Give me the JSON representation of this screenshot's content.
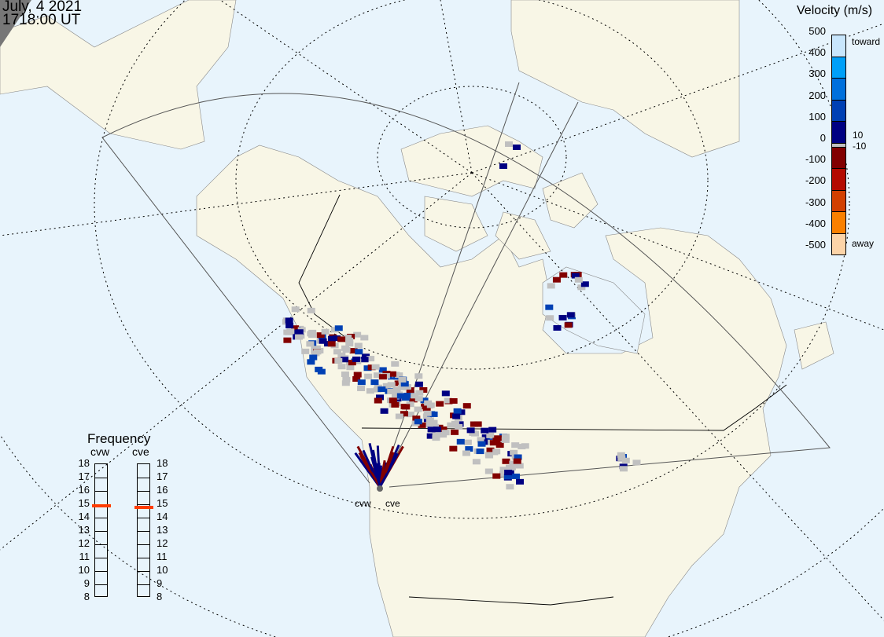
{
  "header": {
    "date": "July, 4 2021",
    "time": "1718:00 UT"
  },
  "colorbar": {
    "title": "Velocity (m/s)",
    "ticks": [
      "500",
      "400",
      "300",
      "200",
      "100",
      "0",
      "-100",
      "-200",
      "-300",
      "-400",
      "-500"
    ],
    "label_top": "toward",
    "label_bottom": "away",
    "label_plus10": "10",
    "label_minus10": "-10",
    "colors_toward": [
      "#c8e6fc",
      "#00a0f8",
      "#0070dc",
      "#0040b4",
      "#000082"
    ],
    "color_ground": "#c0c0c0",
    "colors_away": [
      "#820000",
      "#b40a00",
      "#d24000",
      "#fa8000",
      "#fcd4a8"
    ]
  },
  "frequency": {
    "title": "Frequency",
    "unit_min": 8,
    "unit_max": 18,
    "ticks": [
      "18",
      "17",
      "16",
      "15",
      "14",
      "13",
      "12",
      "11",
      "10",
      "9",
      "8"
    ],
    "radars": [
      {
        "name": "cvw",
        "frequency_mhz": 14.8
      },
      {
        "name": "cve",
        "frequency_mhz": 14.7
      }
    ],
    "marker_color": "#ff3c00"
  },
  "map": {
    "land_color": "#f8f6e6",
    "ocean_color": "#e8f4fc",
    "radar_labels": [
      "cvw",
      "cve"
    ]
  }
}
